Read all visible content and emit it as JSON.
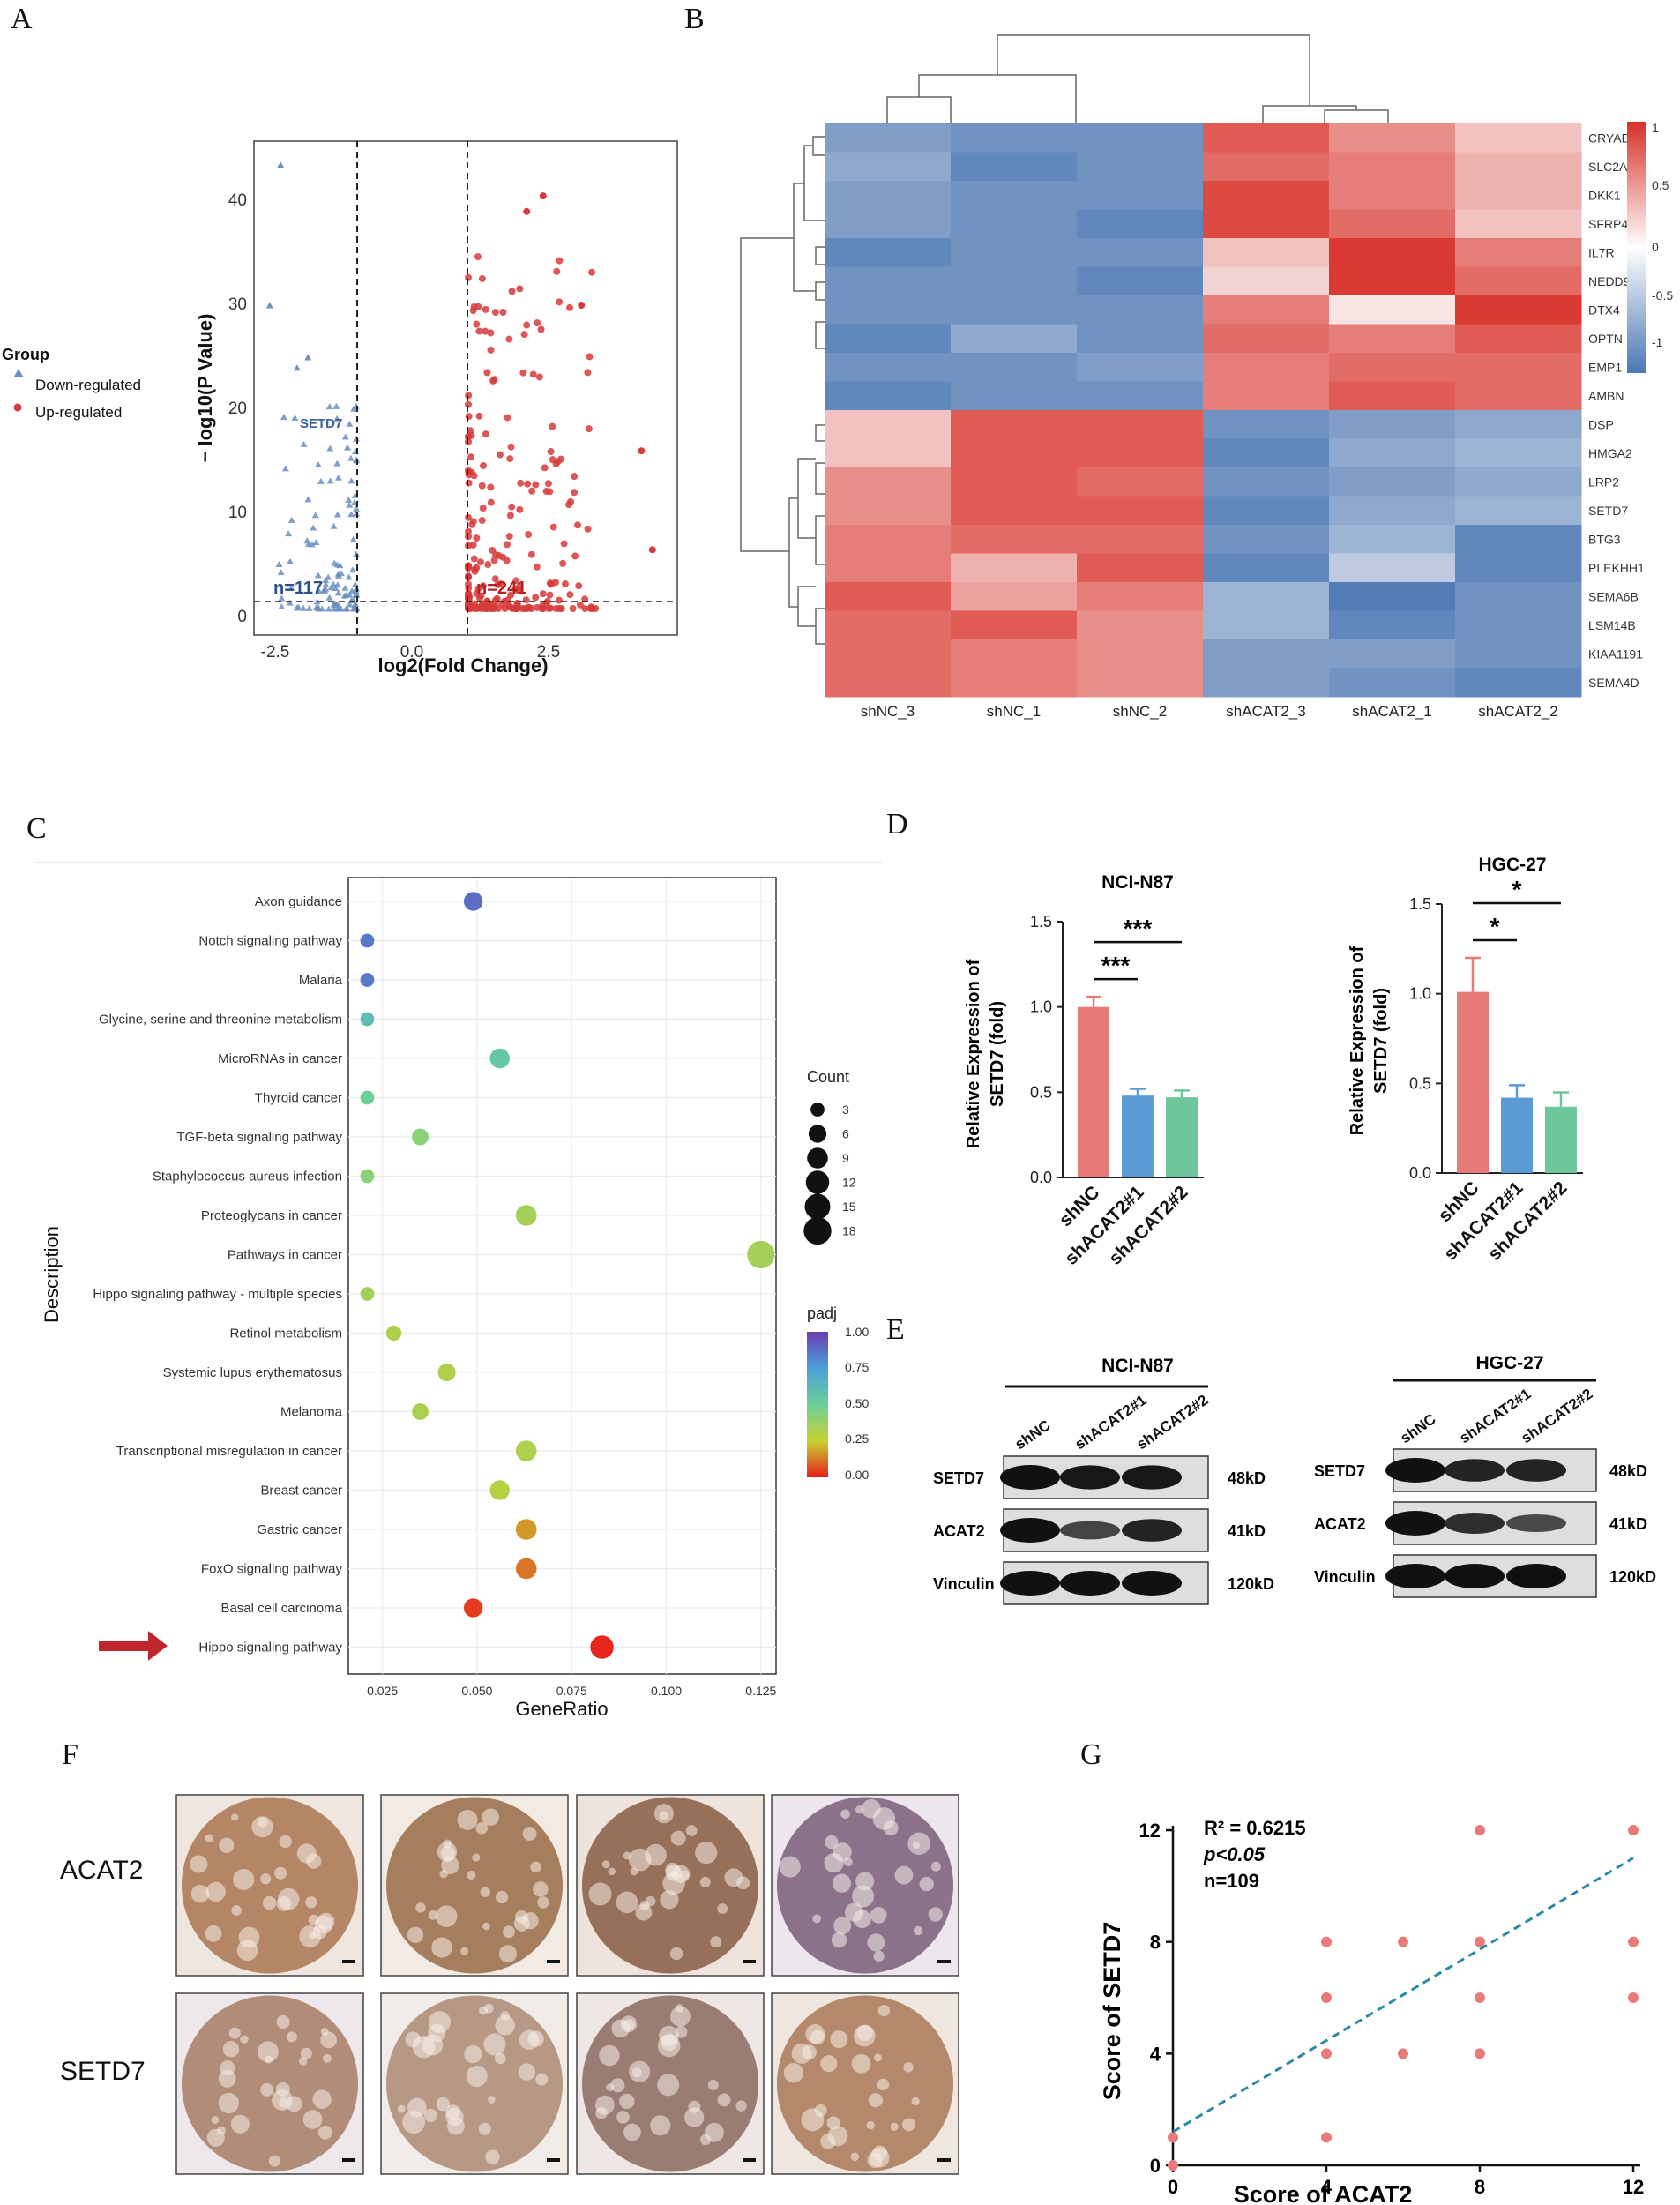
{
  "panels": {
    "A": "A",
    "B": "B",
    "C": "C",
    "D": "D",
    "E": "E",
    "F": "F",
    "G": "G"
  },
  "volcano": {
    "legend_title": "Group",
    "legend_down": "Down-regulated",
    "legend_up": "Up-regulated",
    "ylabel": "− log10(P Value)",
    "xlabel": "log2(Fold Change)",
    "x_ticks": [
      "-2.5",
      "0.0",
      "2.5"
    ],
    "y_ticks": [
      "0",
      "10",
      "20",
      "30",
      "40"
    ],
    "down_count": "n=117",
    "up_count": "n=241",
    "gene_label": "SETD7",
    "colors": {
      "down": "#6a8fc0",
      "up": "#d63b3b"
    }
  },
  "heatmap": {
    "columns": [
      "shNC_3",
      "shNC_1",
      "shNC_2",
      "shACAT2_3",
      "shACAT2_1",
      "shACAT2_2"
    ],
    "rows": [
      "CRYAB",
      "SLC2A3",
      "DKK1",
      "SFRP4",
      "IL7R",
      "NEDD9",
      "DTX4",
      "OPTN",
      "EMP1",
      "AMBN",
      "DSP",
      "HMGA2",
      "LRP2",
      "SETD7",
      "BTG3",
      "PLEKHH1",
      "SEMA6B",
      "LSM14B",
      "KIAA1191",
      "SEMA4D"
    ],
    "values": [
      [
        -0.8,
        -0.9,
        -0.9,
        0.9,
        0.6,
        0.3
      ],
      [
        -0.7,
        -1.0,
        -0.9,
        0.8,
        0.7,
        0.4
      ],
      [
        -0.8,
        -0.9,
        -0.9,
        1.0,
        0.7,
        0.4
      ],
      [
        -0.8,
        -0.9,
        -1.0,
        1.0,
        0.8,
        0.3
      ],
      [
        -1.0,
        -0.9,
        -0.9,
        0.3,
        1.1,
        0.7
      ],
      [
        -0.9,
        -0.9,
        -1.0,
        0.2,
        1.1,
        0.8
      ],
      [
        -0.9,
        -0.9,
        -0.9,
        0.7,
        0.1,
        1.1
      ],
      [
        -1.0,
        -0.7,
        -0.9,
        0.8,
        0.7,
        0.9
      ],
      [
        -0.9,
        -0.9,
        -0.8,
        0.7,
        0.8,
        0.8
      ],
      [
        -1.0,
        -0.9,
        -0.9,
        0.7,
        0.9,
        0.8
      ],
      [
        0.3,
        0.9,
        0.9,
        -0.9,
        -0.8,
        -0.7
      ],
      [
        0.3,
        0.9,
        0.9,
        -1.0,
        -0.7,
        -0.6
      ],
      [
        0.6,
        0.9,
        0.8,
        -0.9,
        -0.8,
        -0.7
      ],
      [
        0.6,
        0.9,
        0.9,
        -1.0,
        -0.7,
        -0.6
      ],
      [
        0.7,
        0.8,
        0.8,
        -0.9,
        -0.6,
        -1.0
      ],
      [
        0.7,
        0.4,
        0.9,
        -1.0,
        -0.4,
        -1.0
      ],
      [
        0.9,
        0.5,
        0.7,
        -0.6,
        -1.1,
        -0.9
      ],
      [
        0.8,
        0.9,
        0.6,
        -0.6,
        -1.0,
        -0.9
      ],
      [
        0.8,
        0.7,
        0.6,
        -0.8,
        -0.8,
        -0.9
      ],
      [
        0.8,
        0.7,
        0.6,
        -0.8,
        -0.9,
        -1.0
      ]
    ],
    "scale_ticks": [
      "1",
      "0.5",
      "0",
      "-0.5",
      "-1"
    ]
  },
  "kegg": {
    "terms": [
      "Axon guidance",
      "Notch signaling pathway",
      "Malaria",
      "Glycine, serine and threonine metabolism",
      "MicroRNAs in cancer",
      "Thyroid cancer",
      "TGF-beta signaling pathway",
      "Staphylococcus aureus infection",
      "Proteoglycans in cancer",
      "Pathways in cancer",
      "Hippo signaling pathway - multiple species",
      "Retinol metabolism",
      "Systemic lupus erythematosus",
      "Melanoma",
      "Transcriptional misregulation in cancer",
      "Breast cancer",
      "Gastric cancer",
      "FoxO signaling pathway",
      "Basal cell carcinoma",
      "Hippo signaling pathway"
    ],
    "gene_ratio": [
      0.049,
      0.021,
      0.021,
      0.021,
      0.056,
      0.021,
      0.035,
      0.021,
      0.063,
      0.125,
      0.021,
      0.028,
      0.042,
      0.035,
      0.063,
      0.056,
      0.063,
      0.063,
      0.049,
      0.083
    ],
    "count": [
      7,
      3,
      3,
      3,
      8,
      3,
      5,
      3,
      9,
      18,
      3,
      4,
      6,
      5,
      9,
      8,
      9,
      9,
      7,
      12
    ],
    "padj": [
      0.88,
      0.85,
      0.85,
      0.6,
      0.55,
      0.5,
      0.42,
      0.42,
      0.35,
      0.35,
      0.35,
      0.32,
      0.32,
      0.33,
      0.32,
      0.3,
      0.17,
      0.12,
      0.04,
      0.01
    ],
    "x_ticks": [
      "0.025",
      "0.050",
      "0.075",
      "0.100",
      "0.125"
    ],
    "xlabel": "GeneRatio",
    "ylabel": "Description",
    "count_title": "Count",
    "count_ticks": [
      "3",
      "6",
      "9",
      "12",
      "15",
      "18"
    ],
    "padj_title": "padj",
    "padj_ticks": [
      "1.00",
      "0.75",
      "0.50",
      "0.25",
      "0.00"
    ]
  },
  "qpcr": {
    "ylabel_line1": "Relative Expression of",
    "ylabel_line2": "SETD7 (fold)",
    "groups": [
      "shNC",
      "shACAT2#1",
      "shACAT2#2"
    ],
    "colors": [
      "#e87a7a",
      "#5b9bd5",
      "#6ec79a"
    ],
    "charts": [
      {
        "title": "NCI-N87",
        "values": [
          1.0,
          0.48,
          0.47
        ],
        "errors": [
          0.06,
          0.04,
          0.04
        ],
        "y_ticks": [
          "0.0",
          "0.5",
          "1.0",
          "1.5"
        ],
        "sig_near": "***",
        "sig_far": "***"
      },
      {
        "title": "HGC-27",
        "values": [
          1.01,
          0.42,
          0.37
        ],
        "errors": [
          0.19,
          0.07,
          0.08
        ],
        "y_ticks": [
          "0.0",
          "0.5",
          "1.0",
          "1.5"
        ],
        "sig_near": "*",
        "sig_far": "*"
      }
    ]
  },
  "western": [
    {
      "title": "NCI-N87",
      "lanes": [
        "shNC",
        "shACAT2#1",
        "shACAT2#2"
      ],
      "proteins": [
        "SETD7",
        "ACAT2",
        "Vinculin"
      ],
      "sizes": [
        "48kD",
        "41kD",
        "120kD"
      ]
    },
    {
      "title": "HGC-27",
      "lanes": [
        "shNC",
        "shACAT2#1",
        "shACAT2#2"
      ],
      "proteins": [
        "SETD7",
        "ACAT2",
        "Vinculin"
      ],
      "sizes": [
        "48kD",
        "41kD",
        "120kD"
      ]
    }
  ],
  "ihc": {
    "rows": [
      "ACAT2",
      "SETD7"
    ]
  },
  "chart_data": {
    "type": "scatter",
    "title": "",
    "xlabel": "Score of ACAT2",
    "ylabel": "Score of SETD7",
    "x_ticks": [
      "0",
      "4",
      "8",
      "12"
    ],
    "y_ticks": [
      "0",
      "4",
      "8",
      "12"
    ],
    "xlim": [
      0,
      12
    ],
    "ylim": [
      0,
      12
    ],
    "x": [
      0,
      0,
      4,
      4,
      4,
      4,
      6,
      6,
      8,
      8,
      8,
      8,
      12,
      12,
      12
    ],
    "y": [
      0,
      1,
      1,
      4,
      6,
      8,
      4,
      8,
      4,
      6,
      8,
      12,
      6,
      8,
      12
    ],
    "fit_line": {
      "x": [
        0,
        12
      ],
      "y": [
        1.2,
        11.0
      ]
    },
    "annotation": {
      "r2": "R² = 0.6215",
      "p": "p<0.05",
      "n": "n=109"
    },
    "point_color": "#e87a7a",
    "line_color": "#2a8aa8"
  }
}
